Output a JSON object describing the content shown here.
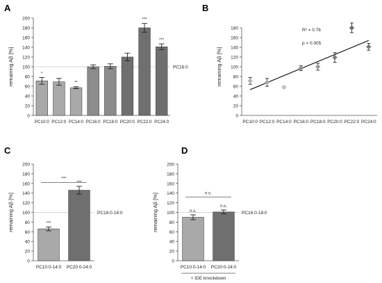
{
  "chart_data": [
    {
      "panel": "A",
      "type": "bar",
      "ylabel": "remaining Aβ [%]",
      "ylim": [
        0,
        200
      ],
      "yticks": [
        "0",
        "20",
        "40",
        "60",
        "80",
        "100",
        "120",
        "140",
        "160",
        "180",
        "200"
      ],
      "categories": [
        "PC10:0",
        "PC12:0",
        "PC14:0",
        "PC16:0",
        "PC18:0",
        "PC20:0",
        "PC22:0",
        "PC24:0"
      ],
      "values": [
        71,
        69,
        57,
        100,
        101,
        120,
        180,
        141
      ],
      "errors": [
        7,
        7,
        2,
        4,
        5,
        8,
        9,
        6
      ],
      "significance": [
        "*",
        "",
        "**",
        "",
        "",
        "",
        "***",
        "***"
      ],
      "bar_colors": [
        "#a9a9a9",
        "#a9a9a9",
        "#a9a9a9",
        "#8c8c8c",
        "#8c8c8c",
        "#6f6f6f",
        "#6f6f6f",
        "#6f6f6f"
      ],
      "reference": {
        "value": 100,
        "label": "PC16:0"
      }
    },
    {
      "panel": "B",
      "type": "scatter",
      "ylabel": "remaining Aβ [%]",
      "ylim": [
        0,
        200
      ],
      "yticks": [
        "0",
        "20",
        "40",
        "60",
        "80",
        "100",
        "120",
        "140",
        "160",
        "180"
      ],
      "categories": [
        "PC10:0",
        "PC12:0",
        "PC14:0",
        "PC16:0",
        "PC18:0",
        "PC20:0",
        "PC22:0",
        "PC24:0"
      ],
      "values": [
        71,
        68,
        58,
        97,
        100,
        119,
        180,
        141
      ],
      "errors": [
        7,
        8,
        2,
        5,
        7,
        10,
        10,
        7
      ],
      "marker_colors": [
        "#b5b5b5",
        "#a8a8a8",
        "#c4c4c4",
        "#8f8f8f",
        "#999999",
        "#7c7c7c",
        "#6a6a6a",
        "#777777"
      ],
      "trendline": {
        "start": [
          1,
          53
        ],
        "end": [
          8,
          154
        ]
      },
      "annotations": [
        "R² = 0.76",
        "p = 0.005"
      ]
    },
    {
      "panel": "C",
      "type": "bar",
      "ylabel": "remaining Aβ [%]",
      "ylim": [
        0,
        200
      ],
      "yticks": [
        "0",
        "20",
        "40",
        "60",
        "80",
        "100",
        "120",
        "140",
        "160",
        "180",
        "200"
      ],
      "categories": [
        "PC10:0-14:0",
        "PC20:0-24:0"
      ],
      "values": [
        66,
        146
      ],
      "errors": [
        4,
        8
      ],
      "significance": [
        "***",
        "***"
      ],
      "bar_colors": [
        "#a9a9a9",
        "#6f6f6f"
      ],
      "reference": {
        "value": 100,
        "label": "PC16:0-18:0"
      },
      "comparison": {
        "label": "***",
        "y": 162
      }
    },
    {
      "panel": "D",
      "type": "bar",
      "ylabel": "remaining Aβ [%]",
      "ylim": [
        0,
        200
      ],
      "yticks": [
        "0",
        "20",
        "40",
        "60",
        "80",
        "100",
        "120",
        "140",
        "160",
        "180",
        "200"
      ],
      "categories": [
        "PC10:0-14:0",
        "PC20:0-24:0"
      ],
      "values": [
        90,
        101
      ],
      "errors": [
        5,
        4
      ],
      "significance": [
        "n.s.",
        "n.s."
      ],
      "bar_colors": [
        "#a9a9a9",
        "#6f6f6f"
      ],
      "reference": {
        "value": 100,
        "label": "PC16:0-18:0"
      },
      "comparison": {
        "label": "n.s.",
        "y": 132
      },
      "footnote": "+ IDE knockdown"
    }
  ]
}
